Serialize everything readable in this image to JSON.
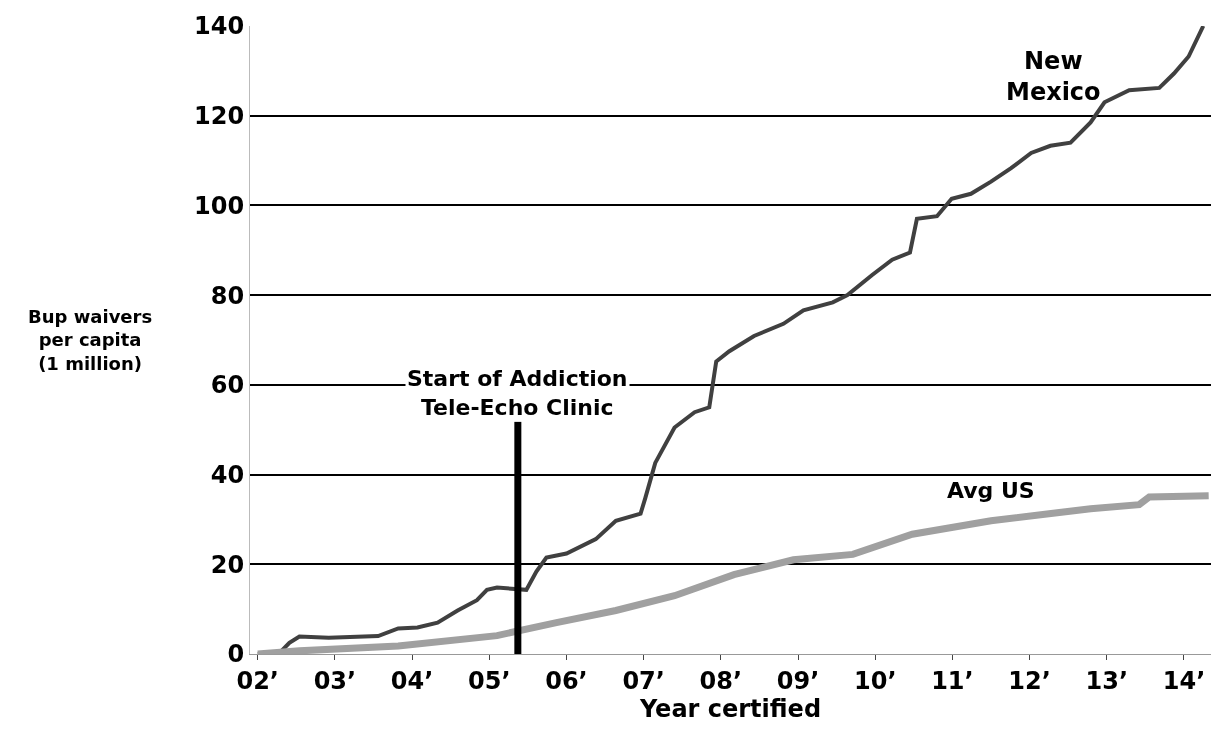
{
  "chart_data": {
    "type": "line",
    "xlabel": "Year certified",
    "ylabel": "Bup waivers per capita (1 million)",
    "xlim": [
      1.9,
      14.35
    ],
    "ylim": [
      0,
      140
    ],
    "xticks": [
      {
        "value": 2,
        "label": "02’"
      },
      {
        "value": 3,
        "label": "03’"
      },
      {
        "value": 4,
        "label": "04’"
      },
      {
        "value": 5,
        "label": "05’"
      },
      {
        "value": 6,
        "label": "06’"
      },
      {
        "value": 7,
        "label": "07’"
      },
      {
        "value": 8,
        "label": "08’"
      },
      {
        "value": 9,
        "label": "09’"
      },
      {
        "value": 10,
        "label": "10’"
      },
      {
        "value": 11,
        "label": "11’"
      },
      {
        "value": 12,
        "label": "12’"
      },
      {
        "value": 13,
        "label": "13’"
      },
      {
        "value": 14,
        "label": "14’"
      }
    ],
    "yticks": [
      0,
      20,
      40,
      60,
      80,
      100,
      120,
      140
    ],
    "grid": "y",
    "legend": false,
    "series": [
      {
        "name": "New Mexico",
        "color": "#404040",
        "x": [
          2.0,
          2.28,
          2.41,
          2.54,
          2.92,
          3.56,
          3.82,
          4.07,
          4.33,
          4.59,
          4.84,
          4.97,
          5.1,
          5.48,
          5.61,
          5.74,
          6.0,
          6.38,
          6.64,
          6.96,
          7.02,
          7.15,
          7.4,
          7.66,
          7.85,
          7.94,
          8.11,
          8.43,
          8.81,
          9.07,
          9.45,
          9.64,
          9.96,
          10.22,
          10.45,
          10.54,
          10.8,
          10.99,
          11.24,
          11.5,
          11.76,
          12.02,
          12.27,
          12.53,
          12.79,
          12.97,
          13.29,
          13.68,
          13.87,
          14.06,
          14.25
        ],
        "values": [
          0,
          0.2,
          2.5,
          3.9,
          3.6,
          4,
          5.7,
          5.9,
          7,
          9.7,
          12,
          14.3,
          14.8,
          14.3,
          18.4,
          21.5,
          22.4,
          25.6,
          29.7,
          31.3,
          34.7,
          42.6,
          50.5,
          53.9,
          55,
          65.2,
          67.5,
          70.9,
          73.6,
          76.6,
          78.4,
          80,
          84.5,
          87.9,
          89.5,
          97,
          97.6,
          101.5,
          102.6,
          105.3,
          108.3,
          111.7,
          113.3,
          114,
          118.5,
          123,
          125.7,
          126.2,
          129.4,
          133.2,
          140
        ]
      },
      {
        "name": "Avg US",
        "color": "#a0a0a0",
        "x": [
          2.0,
          2.54,
          3.82,
          5.1,
          5.87,
          6.64,
          7.4,
          8.17,
          8.94,
          9.71,
          10.48,
          11.5,
          12.79,
          13.42,
          13.55,
          14.32
        ],
        "values": [
          0,
          0.7,
          1.8,
          4.1,
          7,
          9.7,
          13,
          17.7,
          21,
          22.2,
          26.7,
          29.7,
          32.4,
          33.3,
          35,
          35.3
        ]
      }
    ],
    "ref_lines": [
      {
        "axis": "x",
        "value": 5.37,
        "label": "Start of Addiction Tele-Echo Clinic",
        "color": "#000000"
      }
    ]
  }
}
